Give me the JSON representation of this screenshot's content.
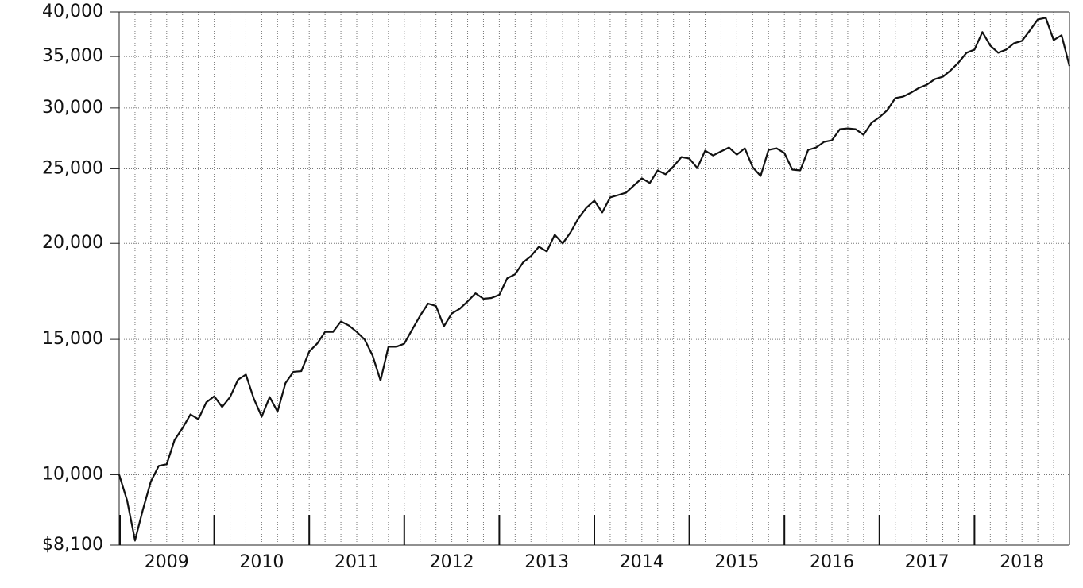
{
  "chart_data": {
    "type": "line",
    "log_scale": true,
    "grid": true,
    "categories": [
      "2009",
      null,
      null,
      null,
      null,
      null,
      null,
      null,
      null,
      null,
      null,
      null,
      "2010",
      null,
      null,
      null,
      null,
      null,
      null,
      null,
      null,
      null,
      null,
      null,
      "2011",
      null,
      null,
      null,
      null,
      null,
      null,
      null,
      null,
      null,
      null,
      null,
      "2012",
      null,
      null,
      null,
      null,
      null,
      null,
      null,
      null,
      null,
      null,
      null,
      "2013",
      null,
      null,
      null,
      null,
      null,
      null,
      null,
      null,
      null,
      null,
      null,
      "2014",
      null,
      null,
      null,
      null,
      null,
      null,
      null,
      null,
      null,
      null,
      null,
      "2015",
      null,
      null,
      null,
      null,
      null,
      null,
      null,
      null,
      null,
      null,
      null,
      "2016",
      null,
      null,
      null,
      null,
      null,
      null,
      null,
      null,
      null,
      null,
      null,
      "2017",
      null,
      null,
      null,
      null,
      null,
      null,
      null,
      null,
      null,
      null,
      null,
      "2018",
      null,
      null,
      null,
      null,
      null,
      null,
      null,
      null,
      null,
      null,
      null,
      null
    ],
    "series": [
      {
        "color": "#111111",
        "values": [
          10000,
          9260,
          8215,
          9010,
          9800,
          10270,
          10320,
          11100,
          11500,
          11980,
          11810,
          12420,
          12650,
          12250,
          12620,
          13290,
          13500,
          12560,
          11900,
          12620,
          12080,
          13160,
          13610,
          13640,
          14460,
          14810,
          15340,
          15340,
          15830,
          15640,
          15340,
          14990,
          14290,
          13260,
          14670,
          14670,
          14810,
          15450,
          16100,
          16700,
          16580,
          15600,
          16210,
          16440,
          16810,
          17220,
          16940,
          16980,
          17140,
          18010,
          18230,
          18890,
          19250,
          19800,
          19520,
          20520,
          19990,
          20670,
          21570,
          22250,
          22730,
          21940,
          22950,
          23110,
          23280,
          23790,
          24300,
          23960,
          24880,
          24590,
          25180,
          25900,
          25780,
          25060,
          26400,
          26020,
          26340,
          26650,
          26080,
          26590,
          25120,
          24470,
          26460,
          26590,
          26210,
          24940,
          24880,
          26460,
          26650,
          27100,
          27230,
          28150,
          28220,
          28150,
          27680,
          28690,
          29180,
          29810,
          30900,
          31040,
          31410,
          31860,
          32170,
          32710,
          32940,
          33580,
          34390,
          35390,
          35730,
          37660,
          36160,
          35390,
          35730,
          36420,
          36680,
          37840,
          39110,
          39300,
          36770,
          37310,
          34000
        ]
      }
    ],
    "ylim": [
      8100,
      40000
    ],
    "yticks": [
      {
        "value": 8100,
        "label": "$8,100"
      },
      {
        "value": 10000,
        "label": "10,000"
      },
      {
        "value": 15000,
        "label": "15,000"
      },
      {
        "value": 20000,
        "label": "20,000"
      },
      {
        "value": 25000,
        "label": "25,000"
      },
      {
        "value": 30000,
        "label": "30,000"
      },
      {
        "value": 35000,
        "label": "35,000"
      },
      {
        "value": 40000,
        "label": "40,000"
      }
    ]
  }
}
